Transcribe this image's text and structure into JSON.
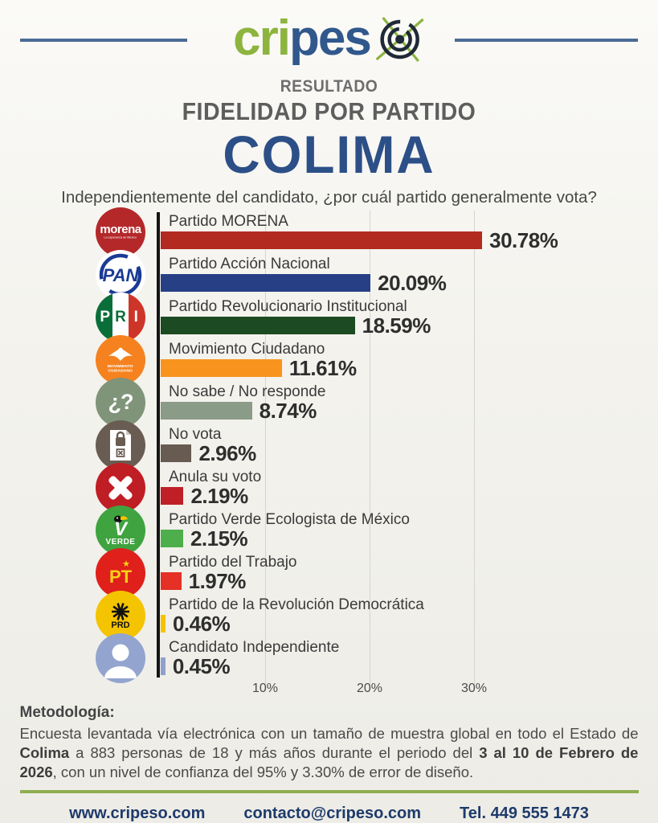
{
  "brand": {
    "name_part1": "cri",
    "name_part2": "pes",
    "accent_green": "#8cb43f",
    "accent_blue": "#30588c",
    "rule_color": "#4a6b96"
  },
  "title": {
    "kicker": "RESULTADO",
    "heading": "FIDELIDAD POR PARTIDO",
    "state": "COLIMA"
  },
  "subtitle": "Independientemente del candidato, ¿por cuál partido generalmente vota?",
  "chart_data": {
    "type": "bar",
    "orientation": "horizontal",
    "title": "Fidelidad por partido — Colima",
    "unit": "%",
    "grid": true,
    "xlim": [
      0,
      45
    ],
    "x_ticks": [
      10,
      20,
      30
    ],
    "x_tick_labels": [
      "10%",
      "20%",
      "30%"
    ],
    "categories": [
      "Partido MORENA",
      "Partido Acción Nacional",
      "Partido Revolucionario Institucional",
      "Movimiento Ciudadano",
      "No sabe / No responde",
      "No vota",
      "Anula su voto",
      "Partido Verde Ecologista de México",
      "Partido del Trabajo",
      "Partido de la Revolución Democrática",
      "Candidato Independiente"
    ],
    "values": [
      30.78,
      20.09,
      18.59,
      11.61,
      8.74,
      2.96,
      2.19,
      2.15,
      1.97,
      0.46,
      0.45
    ],
    "value_labels": [
      "30.78%",
      "20.09%",
      "18.59%",
      "11.61%",
      "8.74%",
      "2.96%",
      "2.19%",
      "2.15%",
      "1.97%",
      "0.46%",
      "0.45%"
    ],
    "bar_colors": [
      "#b22a20",
      "#274085",
      "#1c4a22",
      "#f8941d",
      "#8a9b88",
      "#685b51",
      "#be2026",
      "#4fae4c",
      "#e43025",
      "#f3c300",
      "#8fa0cc"
    ],
    "logo_ids": [
      "morena",
      "pan",
      "pri",
      "mc",
      "nsnr",
      "no-vota",
      "anula",
      "verde",
      "pt",
      "prd",
      "independiente"
    ]
  },
  "logo_texts": {
    "morena_name": "morena",
    "morena_tagline": "La esperanza de México",
    "pan": "PAN",
    "pri": "PRI",
    "mc_line1": "MOVIMIENTO",
    "mc_line2": "CIUDADANO",
    "nsnr": "¿?",
    "verde_v": "V",
    "verde": "VERDE",
    "pt": "PT",
    "pt_star": "★",
    "prd": "PRD"
  },
  "logo_colors": {
    "morena": "#b5282a",
    "pan": "#ffffff",
    "pan_blue": "#1a3a94",
    "pri_green": "#0a6e39",
    "pri_red": "#ce3529",
    "mc": "#f5821f",
    "nsnr": "#7f9479",
    "no_vota": "#695c52",
    "anula": "#bf1e24",
    "verde": "#3fa33f",
    "pt": "#e0201b",
    "prd": "#f4c400",
    "independiente": "#93a4cf"
  },
  "methodology": {
    "heading": "Metodología:",
    "text_parts": [
      {
        "text": "Encuesta levantada vía electrónica con un tamaño de muestra global en todo el Estado de ",
        "bold": false
      },
      {
        "text": "Colima",
        "bold": true
      },
      {
        "text": " a 883 personas de 18 y más años durante el periodo del ",
        "bold": false
      },
      {
        "text": "3 al 10 de Febrero de 2026",
        "bold": true
      },
      {
        "text": ", con un nivel de confianza del 95% y 3.30% de error de diseño.",
        "bold": false
      }
    ]
  },
  "footer": {
    "website": "www.cripeso.com",
    "email": "contacto@cripeso.com",
    "phone": "Tel. 449 555 1473"
  }
}
